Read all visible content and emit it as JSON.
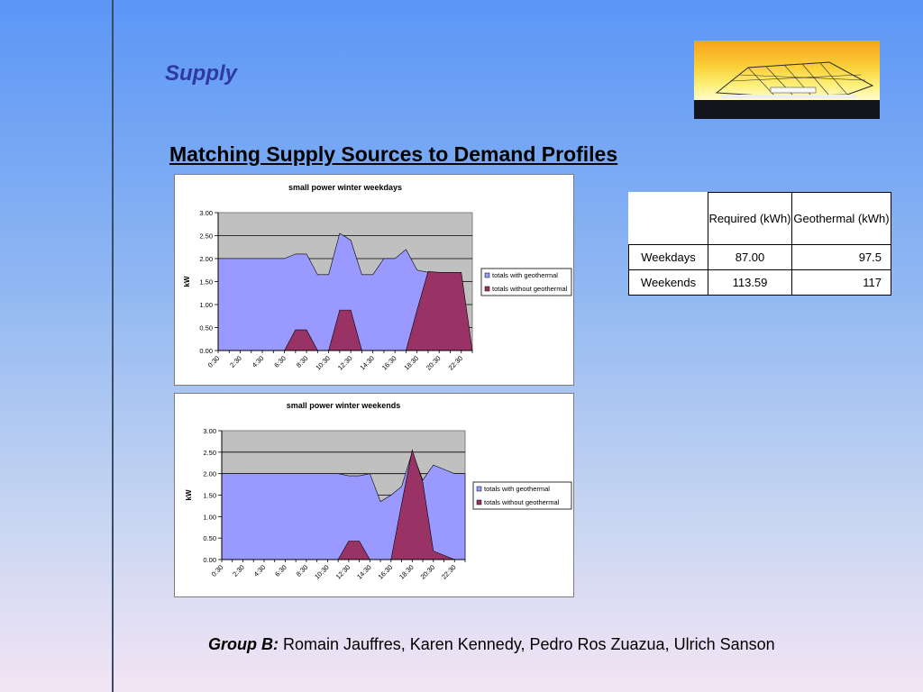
{
  "slide": {
    "title": "Supply",
    "subtitle": "Matching Supply Sources to Demand Profiles",
    "footer_group": "Group B:",
    "footer_names": " Romain Jauffres, Karen Kennedy, Pedro Ros Zuazua, Ulrich Sanson"
  },
  "table": {
    "headers": [
      "",
      "Required (kWh)",
      "Geothermal (kWh)"
    ],
    "rows": [
      {
        "label": "Weekdays",
        "required": "87.00",
        "geothermal": "97.5"
      },
      {
        "label": "Weekends",
        "required": "113.59",
        "geothermal": "117"
      }
    ]
  },
  "colors": {
    "with_geothermal": "#9999ff",
    "without_geothermal": "#993366",
    "plot_background": "#c0c0c0"
  },
  "chart_data": [
    {
      "type": "area",
      "title": "small power winter weekdays",
      "ylabel": "kW",
      "xlabel": "",
      "ylim": [
        0,
        3
      ],
      "yticks": [
        "0.00",
        "0.50",
        "1.00",
        "1.50",
        "2.00",
        "2.50",
        "3.00"
      ],
      "x": [
        "0:30",
        "1:30",
        "2:30",
        "3:30",
        "4:30",
        "5:30",
        "6:30",
        "7:30",
        "8:30",
        "9:30",
        "10:30",
        "11:30",
        "12:30",
        "13:30",
        "14:30",
        "15:30",
        "16:30",
        "17:30",
        "18:30",
        "19:30",
        "20:30",
        "21:30",
        "22:30",
        "23:30"
      ],
      "xtick_labels": [
        "0:30",
        "2:30",
        "4:30",
        "6:30",
        "8:30",
        "10:30",
        "12:30",
        "14:30",
        "16:30",
        "18:30",
        "20:30",
        "22:30"
      ],
      "legend": "right",
      "series": [
        {
          "name": "totals with geothermal",
          "values": [
            2.0,
            2.0,
            2.0,
            2.0,
            2.0,
            2.0,
            2.0,
            2.1,
            2.1,
            1.65,
            1.65,
            2.55,
            2.4,
            1.65,
            1.65,
            2.0,
            2.0,
            2.2,
            1.75,
            1.7,
            1.7,
            1.7,
            0.85,
            0.0
          ]
        },
        {
          "name": "totals without geothermal",
          "values": [
            0,
            0,
            0,
            0,
            0,
            0,
            0,
            0.45,
            0.45,
            0,
            0,
            0.88,
            0.88,
            0,
            0,
            0,
            0,
            0,
            0.88,
            1.72,
            1.7,
            1.7,
            1.7,
            0
          ]
        }
      ]
    },
    {
      "type": "area",
      "title": "small power winter weekends",
      "ylabel": "kW",
      "xlabel": "",
      "ylim": [
        0,
        3
      ],
      "yticks": [
        "0.00",
        "0.50",
        "1.00",
        "1.50",
        "2.00",
        "2.50",
        "3.00"
      ],
      "x": [
        "0:30",
        "1:30",
        "2:30",
        "3:30",
        "4:30",
        "5:30",
        "6:30",
        "7:30",
        "8:30",
        "9:30",
        "10:30",
        "11:30",
        "12:30",
        "13:30",
        "14:30",
        "15:30",
        "16:30",
        "17:30",
        "18:30",
        "19:30",
        "20:30",
        "21:30",
        "22:30",
        "23:30"
      ],
      "xtick_labels": [
        "0:30",
        "2:30",
        "4:30",
        "6:30",
        "8:30",
        "10:30",
        "12:30",
        "14:30",
        "16:30",
        "18:30",
        "20:30",
        "22:30"
      ],
      "legend": "right",
      "series": [
        {
          "name": "totals with geothermal",
          "values": [
            2.0,
            2.0,
            2.0,
            2.0,
            2.0,
            2.0,
            2.0,
            2.0,
            2.0,
            2.0,
            2.0,
            2.0,
            1.95,
            1.95,
            2.0,
            1.35,
            1.5,
            1.7,
            2.5,
            1.85,
            2.2,
            2.1,
            2.0,
            2.0
          ]
        },
        {
          "name": "totals without geothermal",
          "values": [
            0,
            0,
            0,
            0,
            0,
            0,
            0,
            0,
            0,
            0,
            0,
            0,
            0.43,
            0.43,
            0,
            0,
            0,
            1.3,
            2.55,
            1.8,
            0.2,
            0.1,
            0,
            0
          ]
        }
      ]
    }
  ]
}
